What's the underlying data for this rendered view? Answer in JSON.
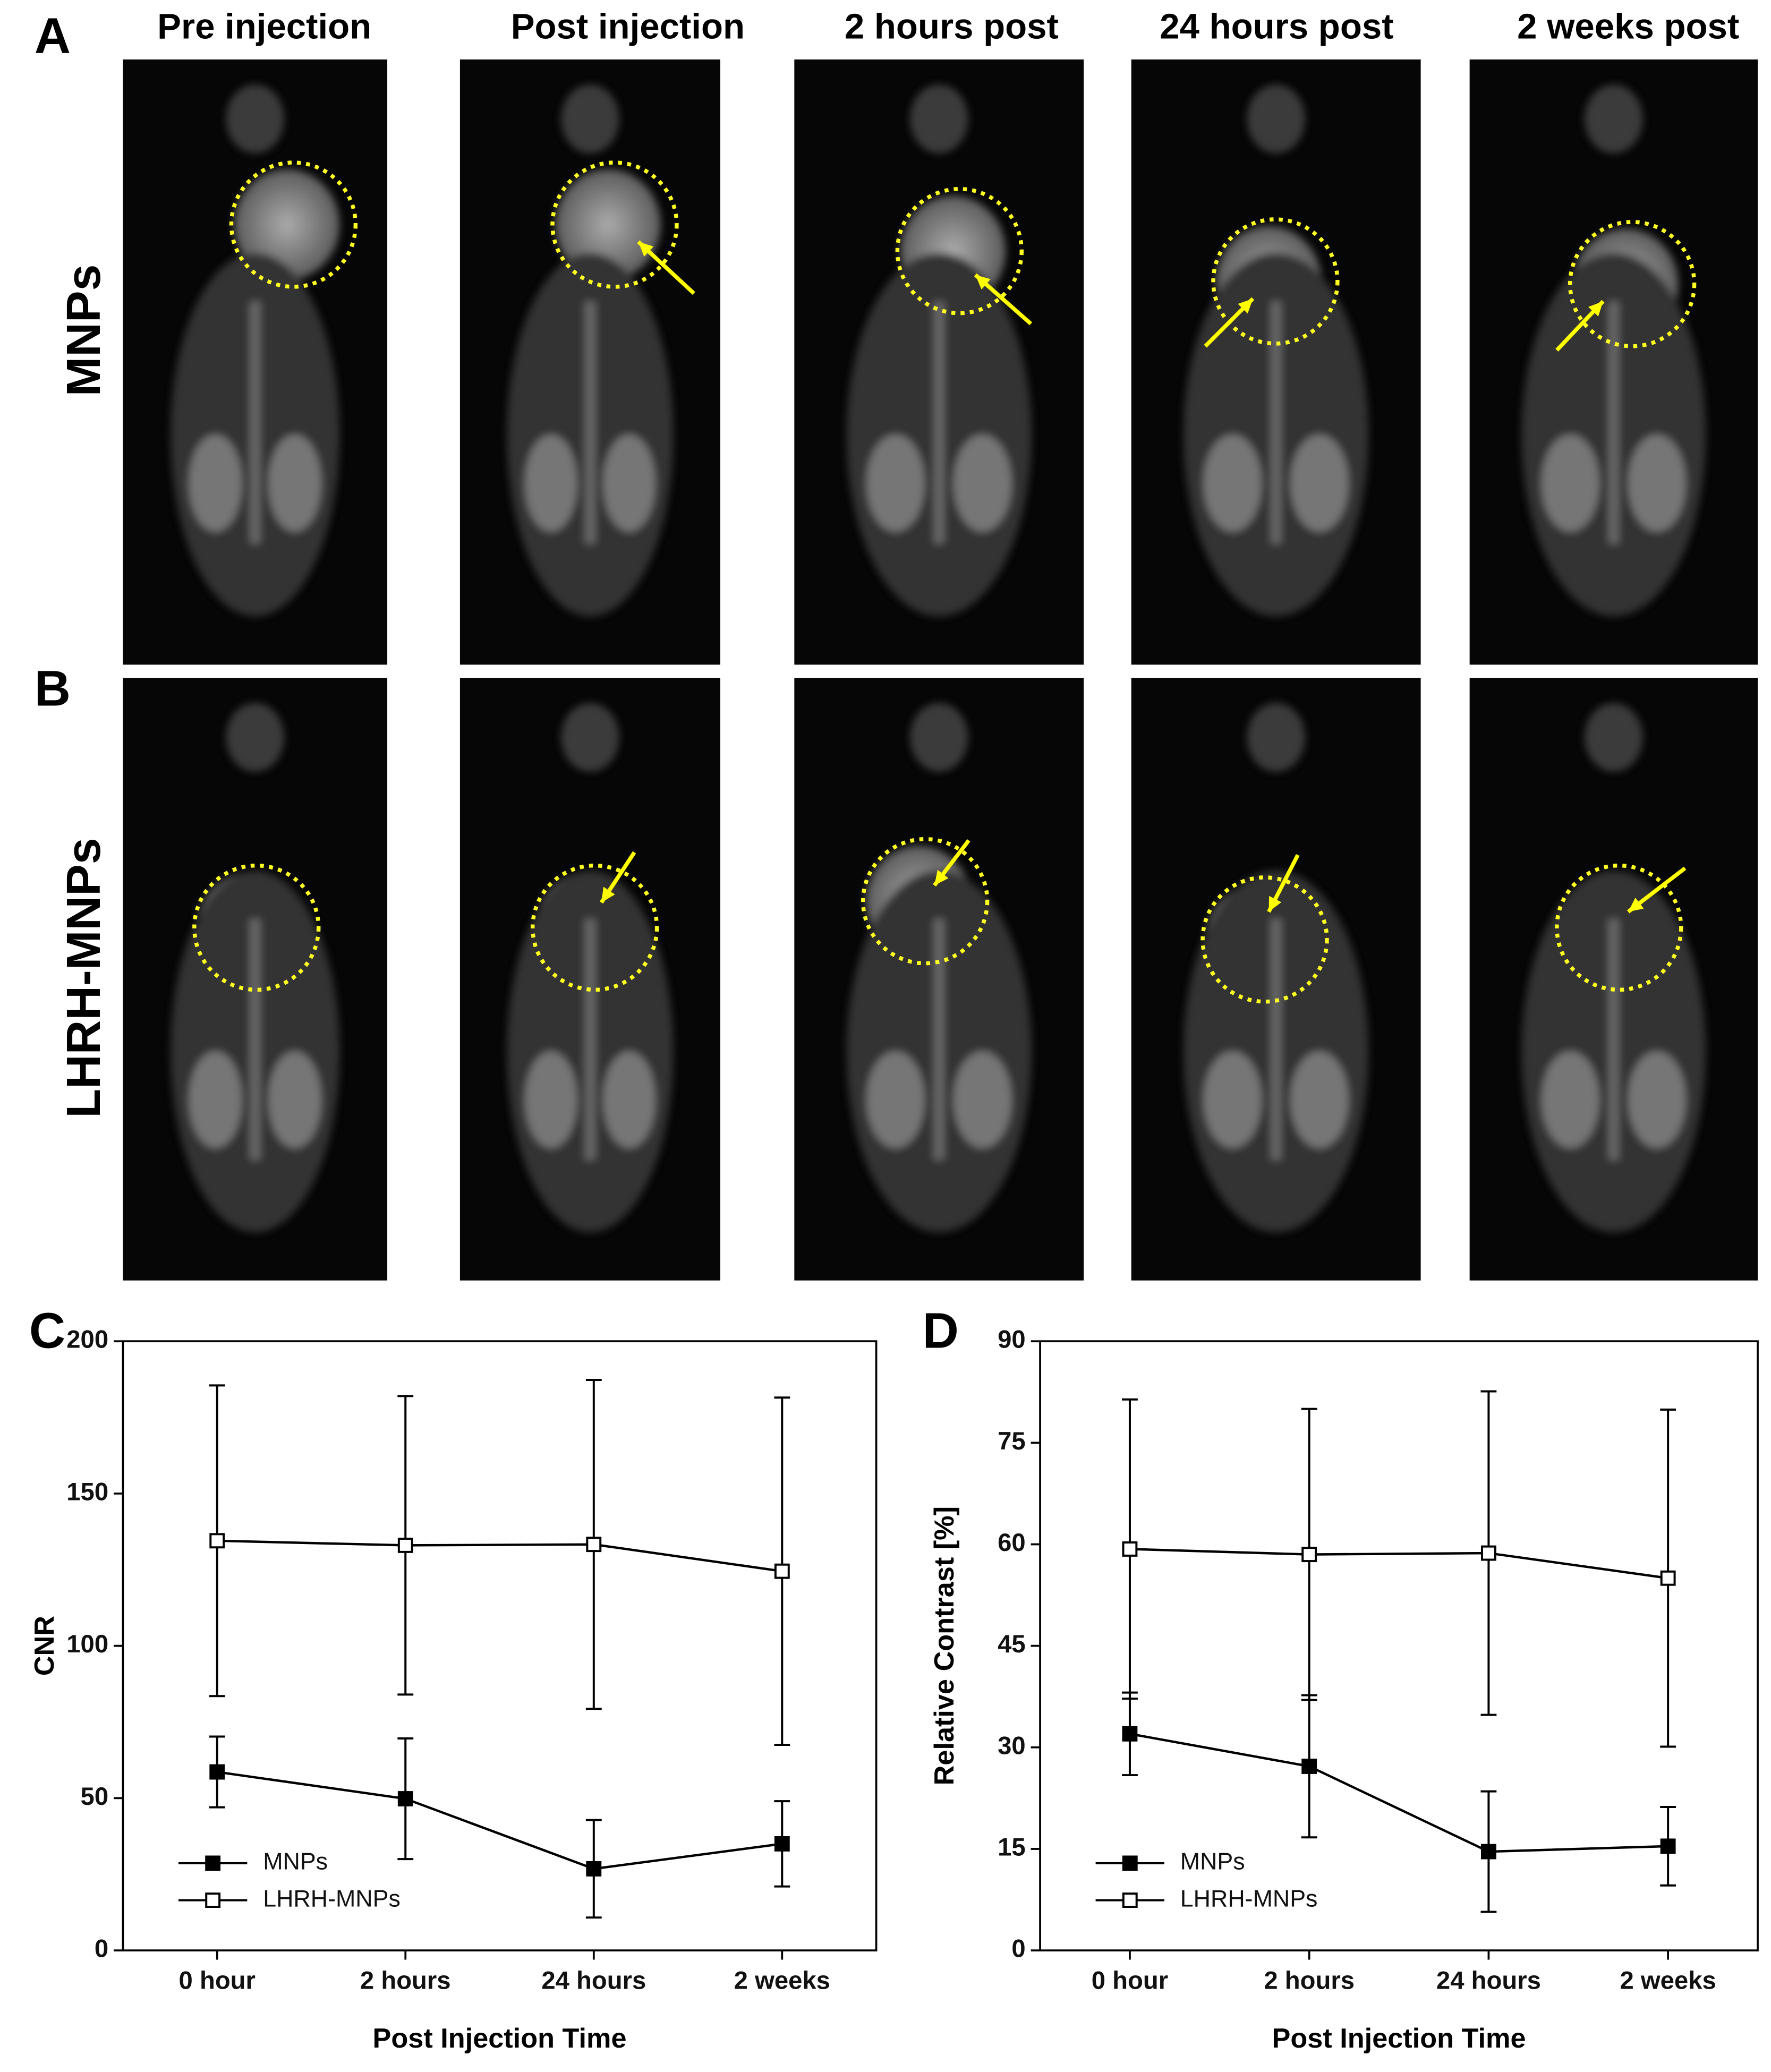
{
  "figure": {
    "panels": [
      "A",
      "B",
      "C",
      "D"
    ],
    "columns": [
      "Pre injection",
      "Post injection",
      "2 hours post",
      "24 hours post",
      "2 weeks post"
    ],
    "rows": [
      "MNPs",
      "LHRH-MNPs"
    ]
  },
  "chart_data": [
    {
      "type": "line",
      "ylabel": "CNR",
      "xlabel": "Post Injection Time",
      "categories": [
        "0 hour",
        "2 hours",
        "24 hours",
        "2 weeks"
      ],
      "ylim": [
        0,
        200
      ],
      "yticks": [
        0,
        50,
        100,
        150,
        200
      ],
      "grid": false,
      "legend": "lower left",
      "series": [
        {
          "name": "MNPs",
          "color": "#000000",
          "marker": "filled-square",
          "values": [
            58.6,
            49.8,
            26.8,
            35.0
          ],
          "errors": [
            11.6,
            19.8,
            16,
            14
          ]
        },
        {
          "name": "LHRH-MNPs",
          "color": "#000000",
          "marker": "open-square",
          "values": [
            134.5,
            133,
            133.3,
            124.5
          ],
          "errors": [
            51,
            49,
            54,
            57
          ]
        }
      ]
    },
    {
      "type": "line",
      "ylabel": "Relative Contrast [%]",
      "xlabel": "Post Injection Time",
      "categories": [
        "0 hour",
        "2 hours",
        "24 hours",
        "2 weeks"
      ],
      "ylim": [
        0,
        90
      ],
      "yticks": [
        0,
        15,
        30,
        45,
        60,
        75,
        90
      ],
      "grid": false,
      "legend": "lower left",
      "series": [
        {
          "name": "MNPs",
          "color": "#000000",
          "marker": "filled-square",
          "values": [
            32,
            27.2,
            14.6,
            15.4
          ],
          "errors": [
            6.1,
            10.5,
            8.9,
            5.8
          ]
        },
        {
          "name": "LHRH-MNPs",
          "color": "#000000",
          "marker": "open-square",
          "values": [
            59.3,
            58.5,
            58.7,
            55
          ],
          "errors": [
            22.1,
            21.5,
            23.9,
            24.9
          ]
        }
      ]
    }
  ]
}
